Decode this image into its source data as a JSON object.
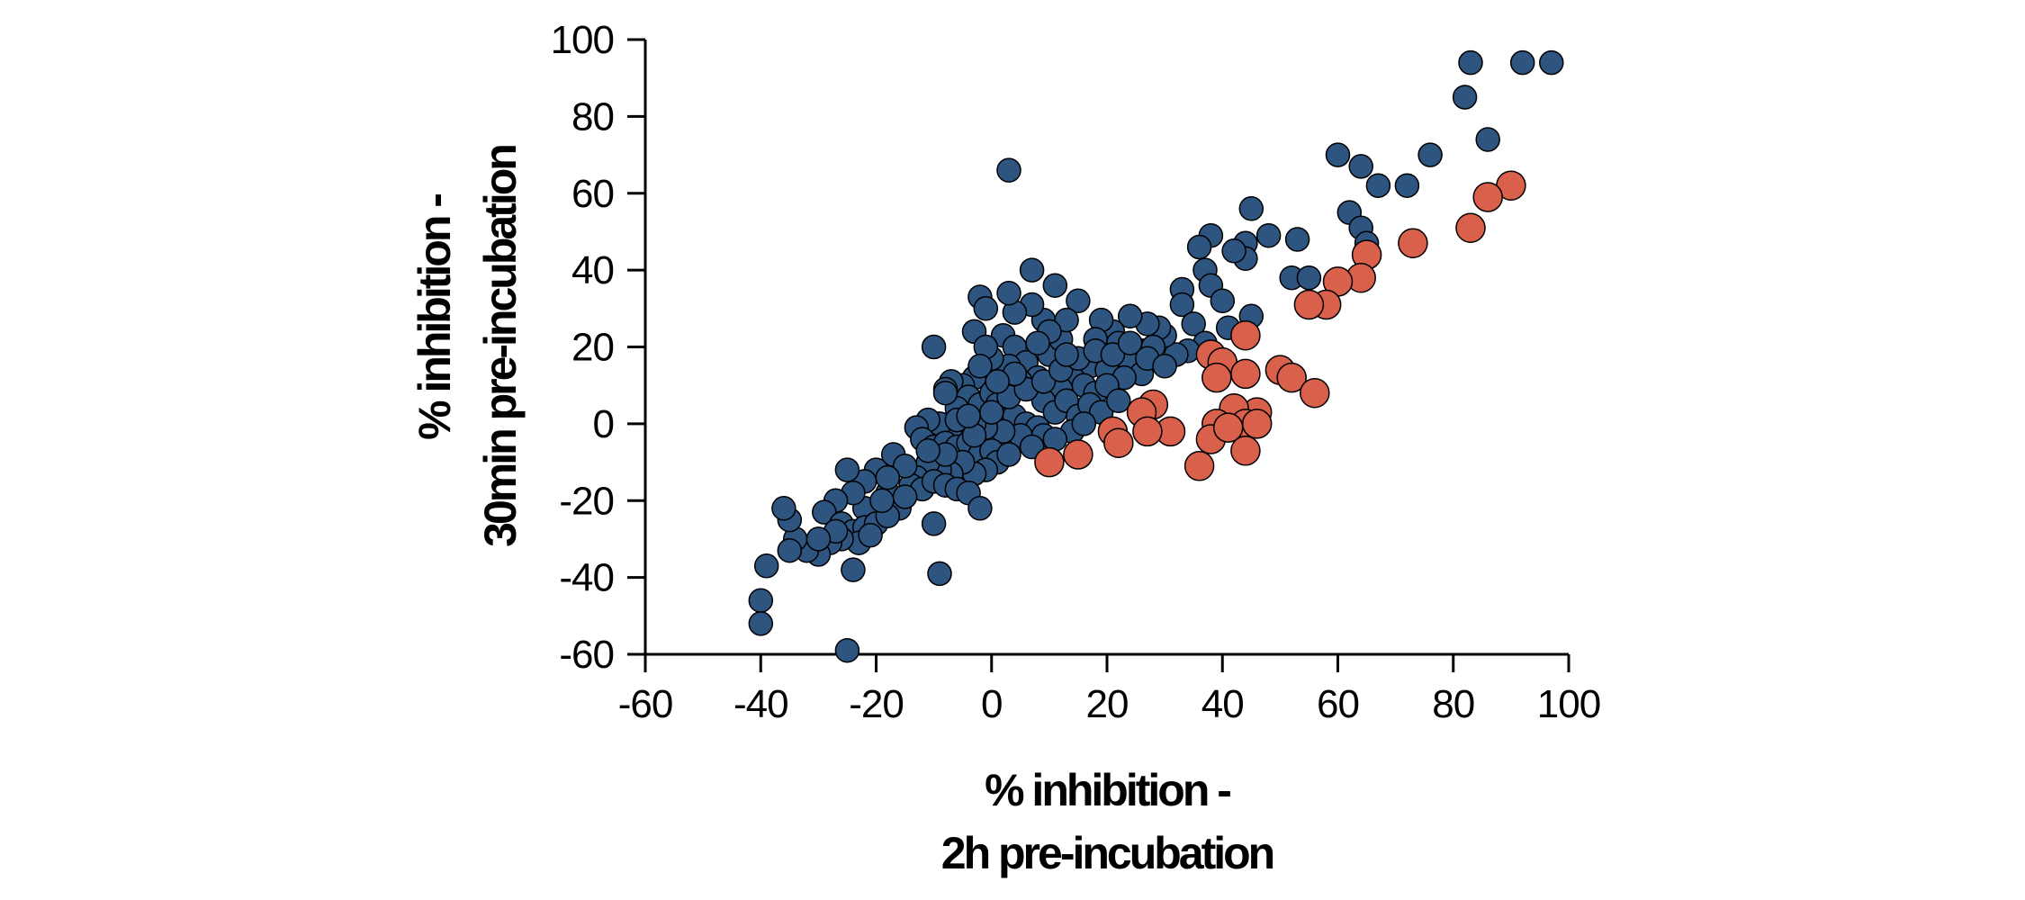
{
  "chart_data": {
    "type": "scatter",
    "title": "",
    "xlabel": [
      "% inhibition -",
      "2h pre-incubation"
    ],
    "ylabel": [
      "% inhibition -",
      "30min pre-incubation"
    ],
    "xlim": [
      -60,
      100
    ],
    "ylim": [
      -60,
      100
    ],
    "xticks": [
      -60,
      -40,
      -20,
      0,
      20,
      40,
      60,
      80,
      100
    ],
    "yticks": [
      -60,
      -40,
      -20,
      0,
      20,
      40,
      60,
      80,
      100
    ],
    "grid": false,
    "legend": "none",
    "colors": {
      "group_blue": "#2e5480",
      "group_red": "#d9604a",
      "outline": "#000000"
    },
    "series": [
      {
        "color": "#2e5480",
        "points": [
          [
            97,
            94
          ],
          [
            92,
            94
          ],
          [
            83,
            94
          ],
          [
            82,
            85
          ],
          [
            86,
            74
          ],
          [
            76,
            70
          ],
          [
            72,
            62
          ],
          [
            67,
            62
          ],
          [
            64,
            67
          ],
          [
            60,
            70
          ],
          [
            62,
            55
          ],
          [
            64,
            51
          ],
          [
            65,
            47
          ],
          [
            53,
            48
          ],
          [
            52,
            38
          ],
          [
            55,
            38
          ],
          [
            48,
            49
          ],
          [
            45,
            56
          ],
          [
            44,
            47
          ],
          [
            44,
            43
          ],
          [
            42,
            45
          ],
          [
            38,
            49
          ],
          [
            36,
            46
          ],
          [
            37,
            40
          ],
          [
            38,
            36
          ],
          [
            40,
            32
          ],
          [
            45,
            28
          ],
          [
            33,
            35
          ],
          [
            33,
            31
          ],
          [
            35,
            26
          ],
          [
            41,
            25
          ],
          [
            37,
            21
          ],
          [
            34,
            19
          ],
          [
            32,
            18
          ],
          [
            30,
            23
          ],
          [
            29,
            25
          ],
          [
            27,
            26
          ],
          [
            24,
            28
          ],
          [
            26,
            19
          ],
          [
            21,
            24
          ],
          [
            22,
            21
          ],
          [
            19,
            27
          ],
          [
            18,
            22
          ],
          [
            17,
            15
          ],
          [
            20,
            14
          ],
          [
            24,
            16
          ],
          [
            28,
            20
          ],
          [
            26,
            13
          ],
          [
            23,
            12
          ],
          [
            15,
            32
          ],
          [
            11,
            36
          ],
          [
            7,
            40
          ],
          [
            9,
            27
          ],
          [
            7,
            31
          ],
          [
            4,
            29
          ],
          [
            3,
            34
          ],
          [
            -2,
            33
          ],
          [
            -1,
            30
          ],
          [
            3,
            66
          ],
          [
            2,
            23
          ],
          [
            -3,
            24
          ],
          [
            4,
            20
          ],
          [
            6,
            16
          ],
          [
            10,
            18
          ],
          [
            12,
            22
          ],
          [
            13,
            27
          ],
          [
            10,
            24
          ],
          [
            8,
            12
          ],
          [
            14,
            12
          ],
          [
            16,
            10
          ],
          [
            18,
            8
          ],
          [
            12,
            9
          ],
          [
            9,
            6
          ],
          [
            11,
            3
          ],
          [
            13,
            6
          ],
          [
            15,
            2
          ],
          [
            17,
            5
          ],
          [
            19,
            3
          ],
          [
            5,
            11
          ],
          [
            3,
            15
          ],
          [
            0,
            17
          ],
          [
            -1,
            20
          ],
          [
            -3,
            12
          ],
          [
            -5,
            10
          ],
          [
            -7,
            11
          ],
          [
            -8,
            9
          ],
          [
            -4,
            7
          ],
          [
            -6,
            4
          ],
          [
            -2,
            5
          ],
          [
            0,
            8
          ],
          [
            1,
            5
          ],
          [
            2,
            1
          ],
          [
            4,
            2
          ],
          [
            6,
            0
          ],
          [
            8,
            -1
          ],
          [
            5,
            -3
          ],
          [
            2,
            -2
          ],
          [
            -1,
            -1
          ],
          [
            -3,
            0
          ],
          [
            -5,
            -2
          ],
          [
            -7,
            -1
          ],
          [
            -9,
            0
          ],
          [
            -11,
            1
          ],
          [
            -13,
            -1
          ],
          [
            -12,
            -4
          ],
          [
            -10,
            -6
          ],
          [
            -8,
            -5
          ],
          [
            -6,
            -6
          ],
          [
            -4,
            -5
          ],
          [
            -2,
            -8
          ],
          [
            0,
            -7
          ],
          [
            1,
            -10
          ],
          [
            -1,
            -12
          ],
          [
            -3,
            -13
          ],
          [
            -5,
            -10
          ],
          [
            -7,
            -13
          ],
          [
            -9,
            -12
          ],
          [
            -11,
            -10
          ],
          [
            -13,
            -14
          ],
          [
            -14,
            -16
          ],
          [
            -12,
            -17
          ],
          [
            -10,
            -15
          ],
          [
            -8,
            -16
          ],
          [
            -6,
            -17
          ],
          [
            -4,
            -18
          ],
          [
            -2,
            -22
          ],
          [
            -17,
            -8
          ],
          [
            -20,
            -12
          ],
          [
            -22,
            -15
          ],
          [
            -18,
            -18
          ],
          [
            -16,
            -22
          ],
          [
            -20,
            -25
          ],
          [
            -22,
            -22
          ],
          [
            -24,
            -18
          ],
          [
            -25,
            -12
          ],
          [
            -27,
            -20
          ],
          [
            -29,
            -23
          ],
          [
            -26,
            -26
          ],
          [
            -24,
            -28
          ],
          [
            -22,
            -27
          ],
          [
            -20,
            -26
          ],
          [
            -18,
            -24
          ],
          [
            -23,
            -31
          ],
          [
            -26,
            -30
          ],
          [
            -28,
            -31
          ],
          [
            -30,
            -34
          ],
          [
            -32,
            -33
          ],
          [
            -34,
            -30
          ],
          [
            -35,
            -25
          ],
          [
            -36,
            -22
          ],
          [
            -35,
            -33
          ],
          [
            -39,
            -37
          ],
          [
            -24,
            -38
          ],
          [
            -10,
            -26
          ],
          [
            -9,
            -39
          ],
          [
            -40,
            -46
          ],
          [
            -40,
            -52
          ],
          [
            -25,
            -59
          ],
          [
            -10,
            20
          ],
          [
            -8,
            8
          ],
          [
            -6,
            1
          ],
          [
            -3,
            -3
          ],
          [
            0,
            3
          ],
          [
            3,
            7
          ],
          [
            6,
            9
          ],
          [
            9,
            11
          ],
          [
            12,
            14
          ],
          [
            15,
            17
          ],
          [
            18,
            19
          ],
          [
            21,
            18
          ],
          [
            24,
            21
          ],
          [
            27,
            17
          ],
          [
            30,
            15
          ],
          [
            20,
            10
          ],
          [
            22,
            6
          ],
          [
            14,
            -2
          ],
          [
            9,
            -3
          ],
          [
            7,
            -6
          ],
          [
            3,
            -8
          ],
          [
            11,
            -4
          ],
          [
            16,
            0
          ],
          [
            13,
            18
          ],
          [
            8,
            21
          ],
          [
            4,
            13
          ],
          [
            1,
            11
          ],
          [
            -2,
            15
          ],
          [
            -4,
            2
          ],
          [
            -8,
            -8
          ],
          [
            -11,
            -7
          ],
          [
            -15,
            -11
          ],
          [
            -18,
            -14
          ],
          [
            -19,
            -20
          ],
          [
            -21,
            -29
          ],
          [
            -27,
            -28
          ],
          [
            -30,
            -30
          ],
          [
            -15,
            -19
          ]
        ]
      },
      {
        "color": "#d9604a",
        "points": [
          [
            90,
            62
          ],
          [
            86,
            59
          ],
          [
            83,
            51
          ],
          [
            73,
            47
          ],
          [
            65,
            44
          ],
          [
            64,
            38
          ],
          [
            60,
            37
          ],
          [
            58,
            31
          ],
          [
            55,
            31
          ],
          [
            44,
            23
          ],
          [
            38,
            18
          ],
          [
            40,
            16
          ],
          [
            39,
            12
          ],
          [
            44,
            13
          ],
          [
            50,
            14
          ],
          [
            52,
            12
          ],
          [
            56,
            8
          ],
          [
            46,
            3
          ],
          [
            42,
            4
          ],
          [
            44,
            0
          ],
          [
            46,
            0
          ],
          [
            39,
            0
          ],
          [
            38,
            -4
          ],
          [
            44,
            -7
          ],
          [
            36,
            -11
          ],
          [
            41,
            -1
          ],
          [
            28,
            5
          ],
          [
            26,
            3
          ],
          [
            31,
            -2
          ],
          [
            27,
            -2
          ],
          [
            21,
            -2
          ],
          [
            22,
            -5
          ],
          [
            15,
            -8
          ],
          [
            10,
            -10
          ]
        ]
      }
    ]
  }
}
